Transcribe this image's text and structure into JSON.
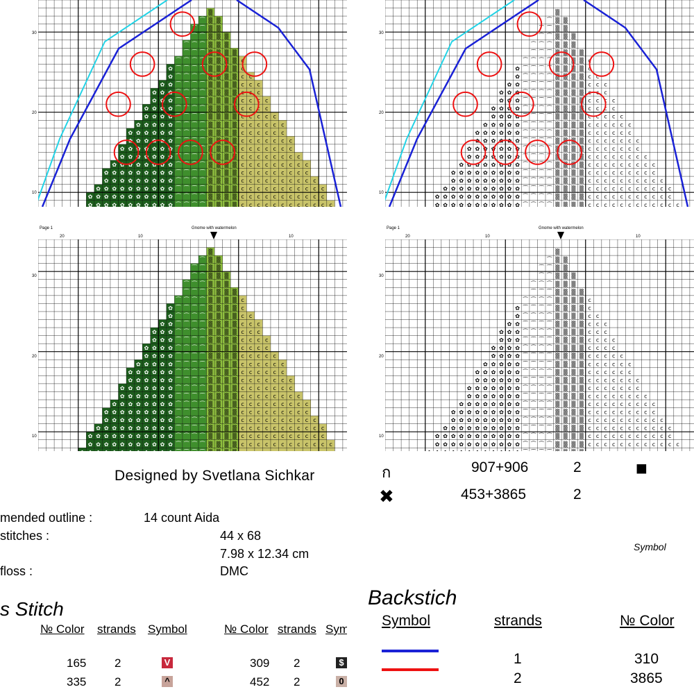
{
  "page_label": "Page 1",
  "chart_title": "Gnome with watermelon",
  "ruler": {
    "top": [
      "20",
      "10",
      "10"
    ],
    "side": [
      "30",
      "20",
      "10"
    ]
  },
  "designer": "Designed by Svetlana Sichkar",
  "specs": [
    {
      "label": "mended outline :",
      "value": "14 count Aida"
    },
    {
      "label": "stitches :",
      "value": "44 x 68"
    },
    {
      "label": "",
      "value": "7.98 x 12.34 cm"
    },
    {
      "label": "floss :",
      "value": "DMC"
    }
  ],
  "cross_stitch": {
    "title": "s Stitch",
    "headers": {
      "color": "№ Color",
      "strands": "strands",
      "symbol": "Symbol",
      "symbol_cut": "Sym"
    },
    "left_rows": [
      {
        "color": "165",
        "strands": "2",
        "symbol": "V",
        "swatch": "#c8283c"
      },
      {
        "color": "335",
        "strands": "2",
        "symbol": "^",
        "swatch": "#c7a39a"
      }
    ],
    "right_rows": [
      {
        "color": "309",
        "strands": "2",
        "symbol": "$",
        "swatch": "#222222"
      },
      {
        "color": "452",
        "strands": "2",
        "symbol": "0",
        "swatch": "#c9b0a6"
      }
    ]
  },
  "blends": [
    {
      "symbol": "ก",
      "color": "907+906",
      "strands": "2",
      "extra": "■"
    },
    {
      "symbol": "✖",
      "color": "453+3865",
      "strands": "2"
    }
  ],
  "symbol_label": "Symbol",
  "backstitch": {
    "title": "Backstich",
    "headers": {
      "symbol": "Symbol",
      "strands": "strands",
      "color": "№ Color"
    },
    "rows": [
      {
        "line_color": "#1a22d6",
        "strands": "1",
        "color": "310"
      },
      {
        "line_color": "#ee1111",
        "strands": "2",
        "color": "3865"
      }
    ]
  },
  "colors": {
    "dark_green": "#1d5e1d",
    "mid_green": "#3f8f2d",
    "light_green": "#8fbf3f",
    "khaki": "#c9c46a",
    "pink": "#c7a39a",
    "outline_blue": "#1a22d6",
    "outline_cyan": "#22d3e6",
    "mark_red": "#ee1111"
  }
}
